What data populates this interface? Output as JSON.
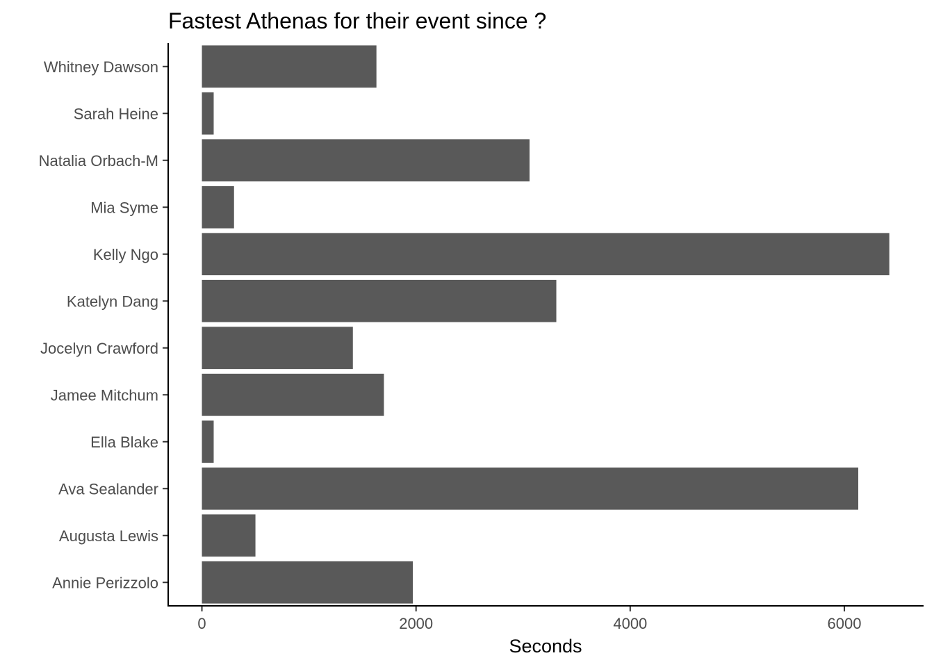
{
  "chart_data": {
    "type": "bar",
    "orientation": "horizontal",
    "title": "Fastest Athenas for their event since ?",
    "xlabel": "Seconds",
    "ylabel": "",
    "categories": [
      "Annie Perizzolo",
      "Augusta Lewis",
      "Ava Sealander",
      "Ella Blake",
      "Jamee Mitchum",
      "Jocelyn Crawford",
      "Katelyn Dang",
      "Kelly Ngo",
      "Mia Syme",
      "Natalia Orbach-M",
      "Sarah Heine",
      "Whitney Dawson"
    ],
    "values": [
      1970,
      500,
      6130,
      110,
      1700,
      1410,
      3310,
      6420,
      300,
      3060,
      110,
      1630
    ],
    "xlim": [
      -315,
      6740
    ],
    "xticks": [
      0,
      2000,
      4000,
      6000
    ],
    "xtick_labels": [
      "0",
      "2000",
      "4000",
      "6000"
    ],
    "bar_color": "#595959",
    "grid": false,
    "legend": "none"
  }
}
